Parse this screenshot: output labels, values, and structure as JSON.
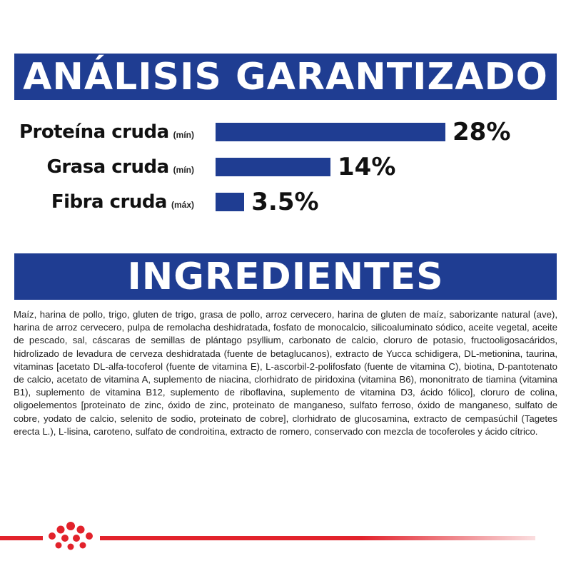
{
  "analysis": {
    "title": "ANÁLISIS GARANTIZADO",
    "nutrients": [
      {
        "name": "Proteína cruda",
        "qualifier": "(mín)",
        "value": "28%",
        "percent": 28
      },
      {
        "name": "Grasa cruda",
        "qualifier": "(mín)",
        "value": "14%",
        "percent": 14
      },
      {
        "name": "Fibra cruda",
        "qualifier": "(máx)",
        "value": "3.5%",
        "percent": 3.5
      }
    ]
  },
  "ingredients": {
    "title": "INGREDIENTES",
    "text": "Maíz, harina de pollo, trigo, gluten de trigo, grasa de pollo, arroz cervecero, harina de gluten de maíz, saborizante natural (ave), harina de arroz cervecero, pulpa de remolacha deshidratada, fosfato de monocalcio, silicoaluminato sódico, aceite vegetal, aceite de pescado, sal, cáscaras de semillas de plántago psyllium, carbonato de calcio, cloruro de potasio, fructooligosacáridos, hidrolizado de levadura de cerveza deshidratada (fuente de betaglucanos), extracto de Yucca schidigera, DL-metionina, taurina, vitaminas [acetato DL-alfa-tocoferol (fuente de vitamina E), L-ascorbil-2-polifosfato (fuente de vitamina C), biotina, D-pantotenato de calcio, acetato de vitamina A, suplemento de niacina, clorhidrato de piridoxina (vitamina B6), mononitrato de tiamina (vitamina B1), suplemento de vitamina B12, suplemento de riboflavina, suplemento de vitamina D3, ácido fólico], cloruro de colina, oligoelementos [proteinato de zinc, óxido de zinc, proteinato de manganeso, sulfato ferroso, óxido de manganeso, sulfato de cobre, yodato de calcio, selenito de sodio, proteinato de cobre], clorhidrato de glucosamina, extracto de cempasúchil (Tagetes erecta L.), L-lisina, caroteno, sulfato de condroitina, extracto de romero, conservado con mezcla de tocoferoles y ácido cítrico."
  },
  "colors": {
    "brand_blue": "#1f3d92",
    "brand_red": "#e2222b"
  },
  "footer": {
    "logo_icon": "royal-canin-crown-icon"
  }
}
